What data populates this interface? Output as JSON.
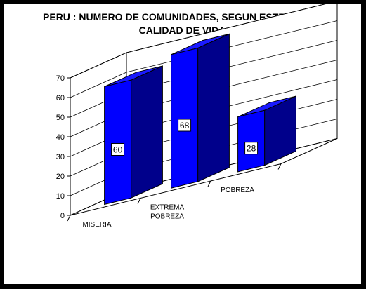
{
  "chart_data": {
    "type": "bar",
    "title_lines": [
      "PERU : NUMERO DE COMUNIDADES, SEGUN ESTRATO DE",
      "CALIDAD DE VIDA"
    ],
    "categories": [
      [
        "MISERIA"
      ],
      [
        "EXTREMA",
        "POBREZA"
      ],
      [
        "POBREZA"
      ]
    ],
    "values": [
      60,
      68,
      28
    ],
    "data_labels": [
      "60",
      "68",
      "28"
    ],
    "ylim": [
      0,
      70
    ],
    "yticks": [
      "0",
      "10",
      "20",
      "30",
      "40",
      "50",
      "60",
      "70"
    ],
    "grid": true,
    "style": "3d-column",
    "colors": {
      "front": "#0000ff",
      "side": "#00008b",
      "top": "#1a1aff",
      "outline": "#000000"
    }
  }
}
